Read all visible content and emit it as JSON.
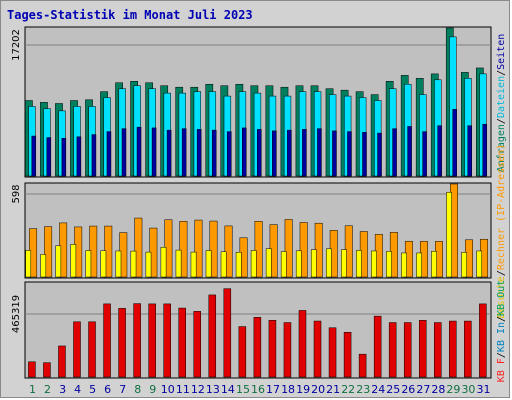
{
  "page_title": "Tages-Statistik im Monat Juli 2023",
  "colors": {
    "background": "#d2d2d2",
    "panel": "#c0c0c0",
    "title": "#0000b4",
    "anfragen": "#007f5f",
    "dateien": "#00e0ff",
    "seiten": "#0000a0",
    "rechner": "#ff9900",
    "besuche": "#ffff00",
    "kb_in": "#e00000",
    "weekend_day": "#107040",
    "weekday_day": "#00009f"
  },
  "legends": {
    "top": [
      {
        "text": "Anfragen",
        "color": "#007f5f"
      },
      {
        "text": "/",
        "color": "#000000"
      },
      {
        "text": "Dateien",
        "color": "#00b8d8"
      },
      {
        "text": "/",
        "color": "#000000"
      },
      {
        "text": "Seiten",
        "color": "#0000a0"
      }
    ],
    "middle": [
      {
        "text": "Besuche",
        "color": "#e6c200"
      },
      {
        "text": "/",
        "color": "#000000"
      },
      {
        "text": "Rechner (IP-Adressen)",
        "color": "#ff9900"
      }
    ],
    "bottom": [
      {
        "text": "KB F",
        "color": "#ff2020"
      },
      {
        "text": "/",
        "color": "#000000"
      },
      {
        "text": "KB In",
        "color": "#0080c0"
      },
      {
        "text": "/",
        "color": "#000000"
      },
      {
        "text": "KB Out",
        "color": "#00a060"
      }
    ]
  },
  "chart_data": [
    {
      "type": "bar",
      "panel": "top",
      "y_tick_label": "17202",
      "ylim": [
        0,
        20000
      ],
      "categories": [
        "1",
        "2",
        "3",
        "4",
        "5",
        "6",
        "7",
        "8",
        "9",
        "10",
        "11",
        "12",
        "13",
        "14",
        "15",
        "16",
        "17",
        "18",
        "19",
        "20",
        "21",
        "22",
        "23",
        "24",
        "25",
        "26",
        "27",
        "28",
        "29",
        "30",
        "31"
      ],
      "series": [
        {
          "name": "Anfragen",
          "values": [
            10200,
            9950,
            9800,
            10200,
            10300,
            11400,
            12600,
            12800,
            12600,
            12200,
            12000,
            12000,
            12400,
            12200,
            12400,
            12200,
            12200,
            12000,
            12200,
            12200,
            11800,
            11600,
            11400,
            11000,
            12800,
            13600,
            13200,
            13800,
            20000,
            14000,
            14600
          ]
        },
        {
          "name": "Dateien",
          "values": [
            9400,
            9100,
            8800,
            9400,
            9400,
            10600,
            11800,
            12200,
            11800,
            11200,
            11200,
            11400,
            11400,
            10800,
            11400,
            11200,
            10800,
            10800,
            11400,
            11400,
            11000,
            10800,
            10600,
            10200,
            11800,
            12400,
            11000,
            13000,
            18800,
            13200,
            13800
          ]
        },
        {
          "name": "Seiten",
          "values": [
            5400,
            5200,
            5100,
            5300,
            5600,
            6000,
            6400,
            6600,
            6500,
            6200,
            6400,
            6300,
            6200,
            6000,
            6500,
            6300,
            6100,
            6200,
            6300,
            6400,
            6100,
            6000,
            5900,
            5800,
            6400,
            6700,
            6000,
            6800,
            9000,
            6800,
            7000
          ]
        }
      ]
    },
    {
      "type": "bar",
      "panel": "middle",
      "y_tick_label": "598",
      "ylim": [
        0,
        650
      ],
      "categories": [
        "1",
        "2",
        "3",
        "4",
        "5",
        "6",
        "7",
        "8",
        "9",
        "10",
        "11",
        "12",
        "13",
        "14",
        "15",
        "16",
        "17",
        "18",
        "19",
        "20",
        "21",
        "22",
        "23",
        "24",
        "25",
        "26",
        "27",
        "28",
        "29",
        "30",
        "31"
      ],
      "series": [
        {
          "name": "Rechner (IP-Adressen)",
          "values": [
            338,
            352,
            378,
            350,
            356,
            356,
            310,
            412,
            342,
            400,
            389,
            398,
            391,
            357,
            274,
            389,
            366,
            402,
            381,
            376,
            326,
            358,
            318,
            298,
            312,
            250,
            249,
            249,
            650,
            260,
            264
          ]
        },
        {
          "name": "Besuche",
          "values": [
            186,
            158,
            218,
            228,
            185,
            184,
            182,
            181,
            174,
            208,
            188,
            174,
            185,
            177,
            173,
            185,
            198,
            178,
            183,
            191,
            197,
            191,
            186,
            182,
            179,
            168,
            168,
            180,
            592,
            172,
            182
          ]
        }
      ]
    },
    {
      "type": "bar",
      "panel": "bottom",
      "y_tick_label": "465319",
      "ylim": [
        0,
        630000
      ],
      "categories": [
        "1",
        "2",
        "3",
        "4",
        "5",
        "6",
        "7",
        "8",
        "9",
        "10",
        "11",
        "12",
        "13",
        "14",
        "15",
        "16",
        "17",
        "18",
        "19",
        "20",
        "21",
        "22",
        "23",
        "24",
        "25",
        "26",
        "27",
        "28",
        "29",
        "30",
        "31"
      ],
      "series": [
        {
          "name": "KB F",
          "values": [
            102000,
            96000,
            208000,
            370000,
            370000,
            490000,
            460000,
            492000,
            490000,
            490000,
            462000,
            440000,
            550000,
            592000,
            338000,
            400000,
            380000,
            365000,
            446000,
            375000,
            330000,
            300000,
            153000,
            408000,
            365000,
            365000,
            380000,
            365000,
            375000,
            375000,
            490000
          ]
        }
      ]
    }
  ]
}
